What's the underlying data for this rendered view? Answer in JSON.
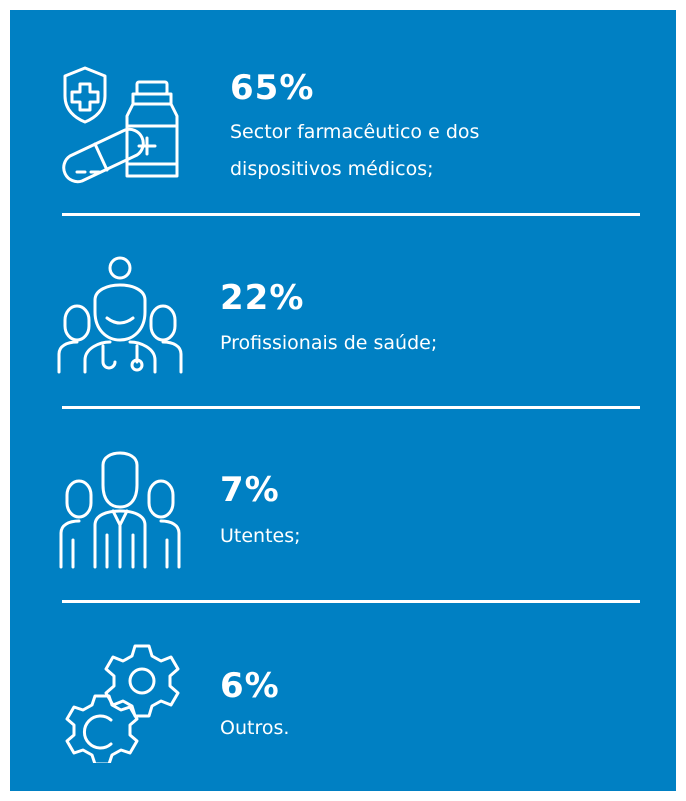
{
  "items": [
    {
      "percent": "65%",
      "label": [
        "Sector farmacêutico e dos",
        "dispositivos médicos;"
      ]
    },
    {
      "percent": "22%",
      "label": [
        "Profissionais de saúde;"
      ]
    },
    {
      "percent": "7%",
      "label": [
        "Utentes;"
      ]
    },
    {
      "percent": "6%",
      "label": [
        "Outros."
      ]
    }
  ]
}
